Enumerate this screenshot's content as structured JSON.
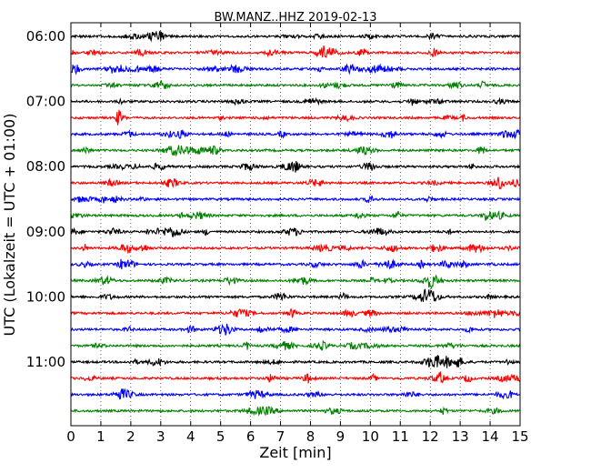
{
  "chart_data": {
    "type": "line",
    "title": "BW.MANZ..HHZ 2019-02-13",
    "xlabel": "Zeit  [min]",
    "ylabel": "UTC (Lokalzeit = UTC + 01:00)",
    "xlim": [
      0,
      15
    ],
    "x_ticks": [
      "0",
      "1",
      "2",
      "3",
      "4",
      "5",
      "6",
      "7",
      "8",
      "9",
      "10",
      "11",
      "12",
      "13",
      "14",
      "15"
    ],
    "y_tick_labels": [
      "06:00",
      "07:00",
      "08:00",
      "09:00",
      "10:00",
      "11:00"
    ],
    "grid": "vertical dotted lines at each minute",
    "trace_colors": [
      "#000000",
      "#ff0000",
      "#0000ff",
      "#008000"
    ],
    "traces": [
      {
        "start": "06:00"
      },
      {
        "start": "06:15"
      },
      {
        "start": "06:30"
      },
      {
        "start": "06:45"
      },
      {
        "start": "07:00"
      },
      {
        "start": "07:15"
      },
      {
        "start": "07:30"
      },
      {
        "start": "07:45"
      },
      {
        "start": "08:00"
      },
      {
        "start": "08:15"
      },
      {
        "start": "08:30"
      },
      {
        "start": "08:45"
      },
      {
        "start": "09:00"
      },
      {
        "start": "09:15"
      },
      {
        "start": "09:30"
      },
      {
        "start": "09:45"
      },
      {
        "start": "10:00"
      },
      {
        "start": "10:15"
      },
      {
        "start": "10:30"
      },
      {
        "start": "10:45"
      },
      {
        "start": "11:00"
      },
      {
        "start": "11:15"
      },
      {
        "start": "11:30"
      },
      {
        "start": "11:45"
      }
    ]
  }
}
